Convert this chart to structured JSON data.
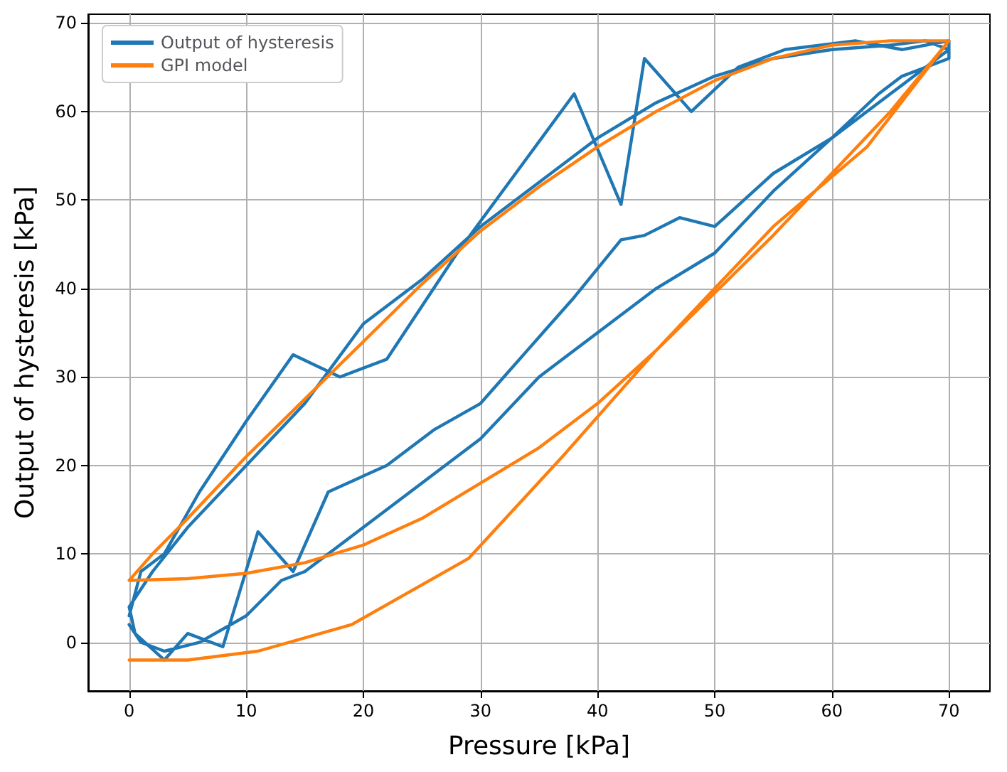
{
  "chart_data": {
    "type": "line",
    "xlabel": "Pressure [kPa]",
    "ylabel": "Output of hysteresis [kPa]",
    "xlim": [
      -3.5,
      73.5
    ],
    "xticks": [
      0,
      10,
      20,
      30,
      40,
      50,
      60,
      70
    ],
    "ylim": [
      -5.5,
      71
    ],
    "yticks": [
      0,
      10,
      20,
      30,
      40,
      50,
      60,
      70
    ],
    "grid": true,
    "legend": "top left",
    "marker": "none",
    "line_style": "solid",
    "series": [
      {
        "name": "Output of hysteresis",
        "color": "#1f77b4",
        "x": [
          0,
          1,
          3,
          6,
          10,
          13,
          15,
          20,
          25,
          30,
          35,
          40,
          45,
          50,
          55,
          60,
          65,
          70,
          68,
          65,
          60,
          55,
          50,
          45,
          40,
          35,
          30,
          25,
          20,
          15,
          10,
          5,
          2,
          0,
          0.5,
          3,
          5,
          8,
          11,
          14,
          17,
          22,
          26,
          30,
          34,
          38,
          42,
          44,
          47,
          50,
          55,
          60,
          64,
          66,
          70,
          70,
          66,
          62,
          56,
          52,
          48,
          44,
          42,
          38,
          33,
          28,
          24,
          22,
          18,
          14,
          10,
          6,
          3,
          1,
          0
        ],
        "values": [
          2,
          0,
          -1,
          0,
          3,
          7,
          8,
          13,
          18,
          23,
          30,
          35,
          40,
          44,
          51,
          57,
          62,
          67,
          68,
          67.5,
          67,
          66,
          64,
          61,
          57,
          52,
          47,
          41,
          36,
          27,
          20,
          13,
          8,
          4,
          1,
          -2,
          1,
          -0.5,
          12.5,
          8,
          17,
          20,
          24,
          27,
          33,
          39,
          45.5,
          46,
          48,
          47,
          53,
          57,
          62,
          64,
          66,
          68,
          67,
          68,
          67,
          65,
          60,
          66,
          49.5,
          62,
          53,
          44,
          36,
          32,
          30,
          32.5,
          25,
          17,
          10,
          8,
          3
        ]
      },
      {
        "name": "GPI model",
        "color": "#ff7f0e",
        "x": [
          0,
          5,
          11,
          19,
          29,
          37,
          45,
          55,
          63,
          70,
          65,
          60,
          55,
          50,
          45,
          40,
          35,
          30,
          25,
          20,
          15,
          10,
          5,
          2,
          0,
          5,
          10,
          15,
          20,
          25,
          30,
          35,
          40,
          45,
          50,
          55,
          60,
          65,
          70
        ],
        "values": [
          -2,
          -2,
          -1,
          2,
          9.5,
          21,
          33,
          47,
          56,
          68,
          68,
          67.5,
          66,
          63.5,
          60,
          56,
          51.5,
          46.5,
          40.5,
          34,
          27.5,
          21,
          14,
          10,
          7,
          7.2,
          7.8,
          9,
          11,
          14,
          18,
          22,
          27,
          33,
          39.5,
          46,
          53,
          60,
          68
        ]
      }
    ]
  }
}
